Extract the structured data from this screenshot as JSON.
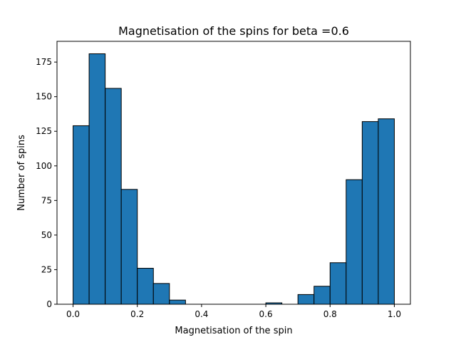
{
  "chart_data": {
    "type": "bar",
    "title": "Magnetisation of the spins for beta =0.6",
    "xlabel": "Magnetisation of the spin",
    "ylabel": "Number of spins",
    "bin_edges": [
      0.0,
      0.05,
      0.1,
      0.15,
      0.2,
      0.25,
      0.3,
      0.35,
      0.4,
      0.45,
      0.5,
      0.55,
      0.6,
      0.65,
      0.7,
      0.75,
      0.8,
      0.85,
      0.9,
      0.95,
      1.0
    ],
    "counts": [
      129,
      181,
      156,
      83,
      26,
      15,
      3,
      0,
      0,
      0,
      0,
      0,
      1,
      0,
      7,
      13,
      30,
      90,
      132,
      134
    ],
    "xlim": [
      -0.05,
      1.05
    ],
    "ylim": [
      0,
      190
    ],
    "x_ticks": [
      {
        "value": 0.0,
        "label": "0.0"
      },
      {
        "value": 0.2,
        "label": "0.2"
      },
      {
        "value": 0.4,
        "label": "0.4"
      },
      {
        "value": 0.6,
        "label": "0.6"
      },
      {
        "value": 0.8,
        "label": "0.8"
      },
      {
        "value": 1.0,
        "label": "1.0"
      }
    ],
    "y_ticks": [
      {
        "value": 0,
        "label": "0"
      },
      {
        "value": 25,
        "label": "25"
      },
      {
        "value": 50,
        "label": "50"
      },
      {
        "value": 75,
        "label": "75"
      },
      {
        "value": 100,
        "label": "100"
      },
      {
        "value": 125,
        "label": "125"
      },
      {
        "value": 150,
        "label": "150"
      },
      {
        "value": 175,
        "label": "175"
      }
    ],
    "bar_color": "#1f77b4",
    "edge_color": "#000000",
    "grid": false
  }
}
